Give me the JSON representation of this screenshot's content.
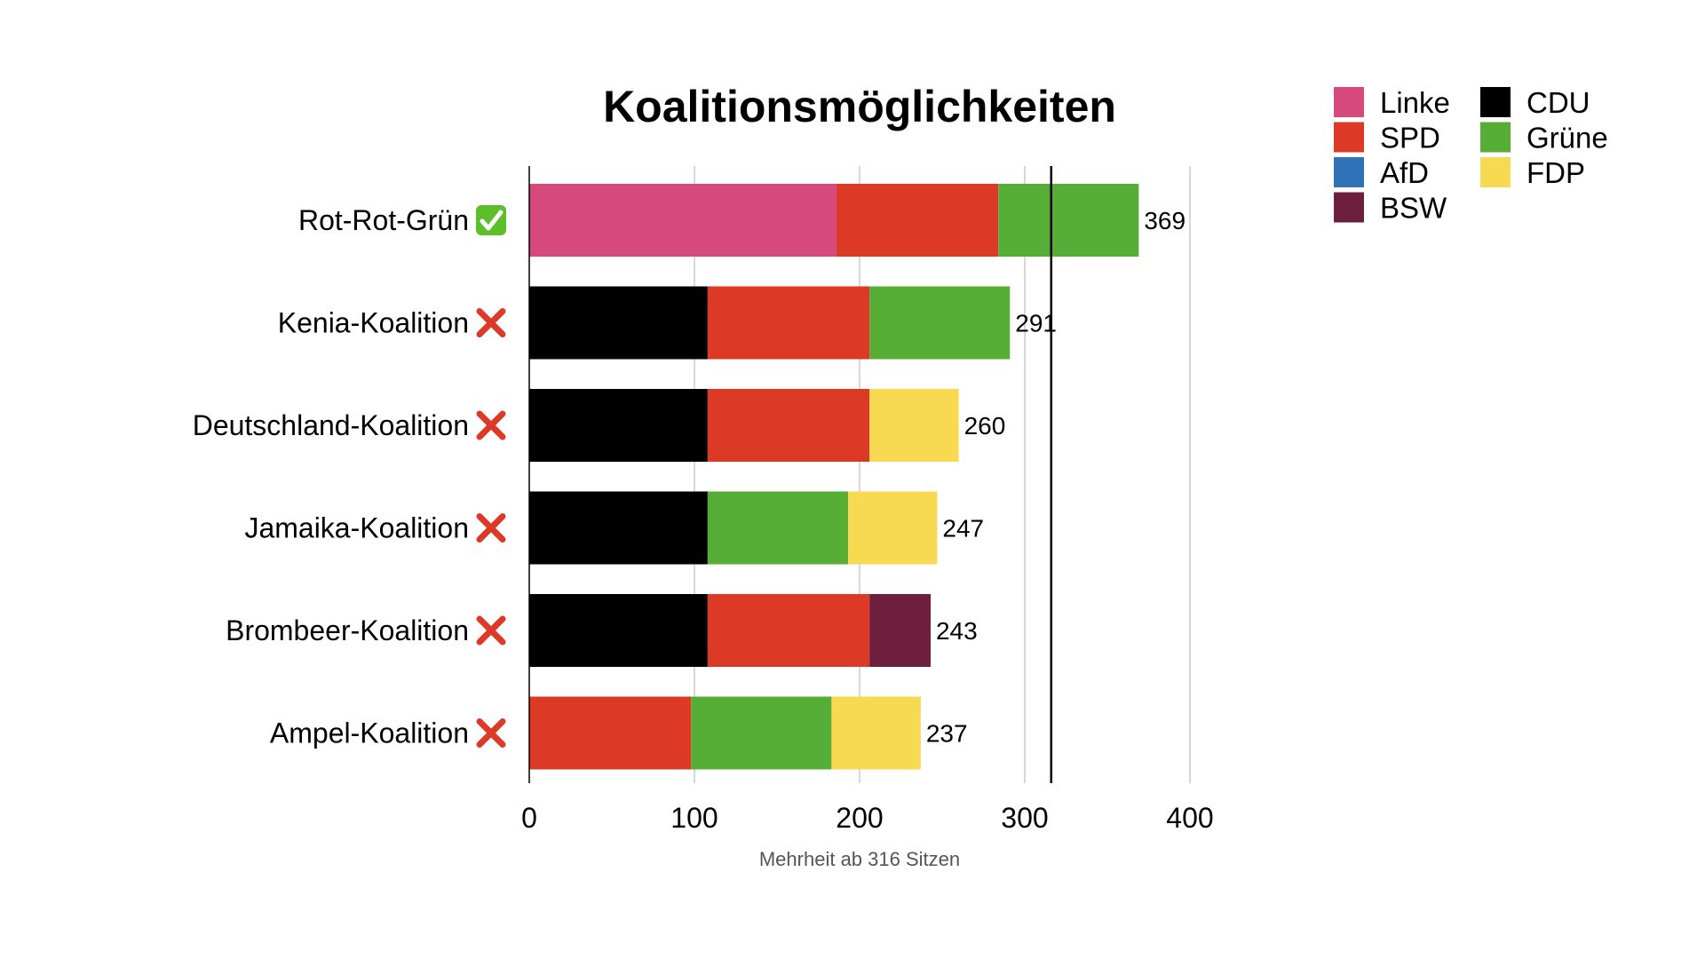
{
  "colors": {
    "Linke": "#d64a7b",
    "SPD": "#dc3a27",
    "AfD": "#2f72b8",
    "BSW": "#6e1f3d",
    "CDU": "#000000",
    "Grüne": "#56ae36",
    "FDP": "#f8d952",
    "check_bg": "#5cbf2a",
    "cross": "#dc3a27"
  },
  "chart_data": {
    "type": "bar",
    "orientation": "horizontal",
    "stacked": true,
    "title": "Koalitionsmöglichkeiten",
    "xlabel": "Mehrheit ab 316 Sitzen",
    "xlim": [
      0,
      400
    ],
    "xticks": [
      0,
      100,
      200,
      300,
      400
    ],
    "majority_line": 316,
    "grid": true,
    "legend_position": "top-right",
    "legend": [
      {
        "name": "Linke",
        "color": "#d64a7b"
      },
      {
        "name": "SPD",
        "color": "#dc3a27"
      },
      {
        "name": "AfD",
        "color": "#2f72b8"
      },
      {
        "name": "BSW",
        "color": "#6e1f3d"
      },
      {
        "name": "CDU",
        "color": "#000000"
      },
      {
        "name": "Grüne",
        "color": "#56ae36"
      },
      {
        "name": "FDP",
        "color": "#f8d952"
      }
    ],
    "categories": [
      {
        "label": "Rot-Rot-Grün",
        "majority": true,
        "total": 369,
        "segments": [
          {
            "party": "Linke",
            "value": 186
          },
          {
            "party": "SPD",
            "value": 98
          },
          {
            "party": "Grüne",
            "value": 85
          }
        ]
      },
      {
        "label": "Kenia-Koalition",
        "majority": false,
        "total": 291,
        "segments": [
          {
            "party": "CDU",
            "value": 108
          },
          {
            "party": "SPD",
            "value": 98
          },
          {
            "party": "Grüne",
            "value": 85
          }
        ]
      },
      {
        "label": "Deutschland-Koalition",
        "majority": false,
        "total": 260,
        "segments": [
          {
            "party": "CDU",
            "value": 108
          },
          {
            "party": "SPD",
            "value": 98
          },
          {
            "party": "FDP",
            "value": 54
          }
        ]
      },
      {
        "label": "Jamaika-Koalition",
        "majority": false,
        "total": 247,
        "segments": [
          {
            "party": "CDU",
            "value": 108
          },
          {
            "party": "Grüne",
            "value": 85
          },
          {
            "party": "FDP",
            "value": 54
          }
        ]
      },
      {
        "label": "Brombeer-Koalition",
        "majority": false,
        "total": 243,
        "segments": [
          {
            "party": "CDU",
            "value": 108
          },
          {
            "party": "SPD",
            "value": 98
          },
          {
            "party": "BSW",
            "value": 37
          }
        ]
      },
      {
        "label": "Ampel-Koalition",
        "majority": false,
        "total": 237,
        "segments": [
          {
            "party": "SPD",
            "value": 98
          },
          {
            "party": "Grüne",
            "value": 85
          },
          {
            "party": "FDP",
            "value": 54
          }
        ]
      }
    ]
  }
}
